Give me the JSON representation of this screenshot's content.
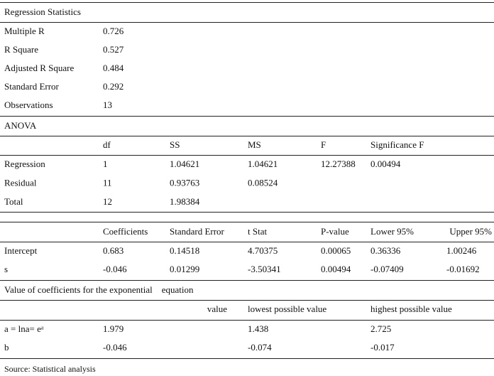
{
  "regression_statistics": {
    "title": "Regression Statistics",
    "rows": [
      [
        "Multiple R",
        "0.726"
      ],
      [
        "R Square",
        "0.527"
      ],
      [
        "Adjusted R Square",
        "0.484"
      ],
      [
        "Standard Error",
        "0.292"
      ],
      [
        "Observations",
        "13"
      ]
    ]
  },
  "anova": {
    "title": "ANOVA",
    "header": [
      "df",
      "SS",
      "MS",
      "F",
      "Significance F"
    ],
    "rows": [
      [
        "Regression",
        "1",
        "1.04621",
        "1.04621",
        "12.27388",
        "0.00494"
      ],
      [
        "Residual",
        "11",
        "0.93763",
        "0.08524"
      ],
      [
        "Total",
        "12",
        "1.98384"
      ]
    ]
  },
  "coefficients": {
    "header": [
      "Coefficients",
      "Standard Error",
      "t Stat",
      "P-value",
      "Lower 95%",
      "Upper 95%"
    ],
    "rows": [
      [
        "Intercept",
        "0.683",
        "0.14518",
        "4.70375",
        "0.00065",
        "0.36336",
        "1.00246"
      ],
      [
        "s",
        "-0.046",
        "0.01299",
        "-3.50341",
        "0.00494",
        "-0.07409",
        "-0.01692"
      ]
    ]
  },
  "exponential": {
    "title": "Value of coefficients for the exponential    equation",
    "header": [
      "value",
      "lowest possible value",
      "highest possible value"
    ],
    "rows": [
      [
        "a = lna= eᵃ",
        "1.979",
        "1.438",
        "2.725"
      ],
      [
        "b",
        "-0.046",
        "-0.074",
        "-0.017"
      ]
    ]
  },
  "source": "Source: Statistical analysis"
}
